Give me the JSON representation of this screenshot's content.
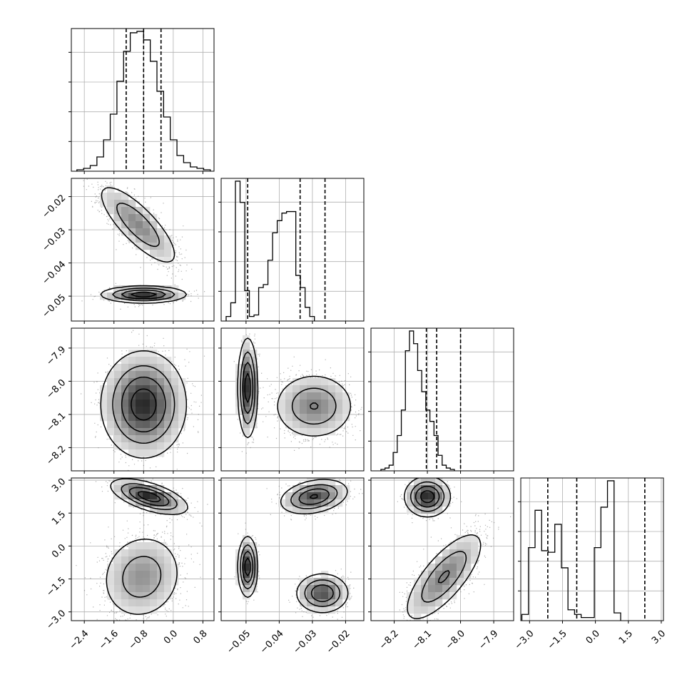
{
  "chart_data": {
    "type": "corner",
    "grid": true,
    "parameters": [
      {
        "ticks": [
          "−2.4",
          "−1.6",
          "−0.8",
          "0.0",
          "0.8"
        ],
        "tick_values": [
          -2.4,
          -1.6,
          -0.8,
          0.0,
          0.8
        ],
        "range": [
          -2.75,
          1.1
        ]
      },
      {
        "ticks": [
          "−0.05",
          "−0.04",
          "−0.03",
          "−0.02"
        ],
        "tick_values": [
          -0.05,
          -0.04,
          -0.03,
          -0.02
        ],
        "range": [
          -0.0575,
          -0.0145
        ]
      },
      {
        "ticks": [
          "−8.2",
          "−8.1",
          "−8.0",
          "−7.9"
        ],
        "tick_values": [
          -8.2,
          -8.1,
          -8.0,
          -7.9
        ],
        "range": [
          -8.27,
          -7.84
        ]
      },
      {
        "ticks": [
          "−3.0",
          "−1.5",
          "0.0",
          "1.5",
          "3.0"
        ],
        "tick_values": [
          -3.0,
          -1.5,
          0.0,
          1.5,
          3.0
        ],
        "range": [
          -3.4,
          3.1
        ]
      }
    ],
    "histograms": [
      {
        "quantiles": [
          -1.27,
          -0.8,
          -0.33
        ],
        "bins": {
          "start": -2.6,
          "width": 0.18,
          "counts": [
            1,
            2,
            4,
            10,
            22,
            40,
            63,
            84,
            97,
            98,
            92,
            77,
            56,
            38,
            22,
            11,
            6,
            3,
            2,
            1
          ]
        }
      },
      {
        "quantiles": [
          -0.0495,
          -0.0337,
          -0.0262
        ],
        "bins": {
          "start": -0.056,
          "width": 0.0014,
          "counts": [
            3,
            12,
            92,
            78,
            20,
            3,
            4,
            22,
            24,
            40,
            58,
            66,
            71,
            72,
            72,
            30,
            22,
            9,
            3
          ]
        }
      },
      {
        "quantiles": [
          -8.103,
          -8.072,
          -8.0
        ],
        "bins": {
          "start": -8.24,
          "width": 0.0123,
          "counts": [
            1,
            2,
            4,
            13,
            25,
            43,
            85,
            99,
            90,
            71,
            56,
            43,
            35,
            25,
            11,
            4,
            2,
            1
          ]
        }
      },
      {
        "quantiles": [
          -2.17,
          -0.85,
          2.25
        ],
        "bins": {
          "start": -3.35,
          "width": 0.3,
          "counts": [
            4,
            47,
            71,
            45,
            44,
            62,
            34,
            7,
            4,
            2,
            2,
            47,
            73,
            90,
            5
          ]
        }
      }
    ],
    "blobs": {
      "1-0": [
        {
          "cx": -0.95,
          "cy": -0.0285,
          "sx": 0.5,
          "sy": 0.0057,
          "rho": -0.8,
          "w": 0.6
        },
        {
          "cx": -0.8,
          "cy": -0.0495,
          "sx": 0.5,
          "sy": 0.0011,
          "rho": 0.0,
          "w": 0.4
        }
      ],
      "2-0": [
        {
          "cx": -0.8,
          "cy": -8.07,
          "sx": 0.5,
          "sy": 0.07,
          "rho": 0.0,
          "w": 1.0
        }
      ],
      "2-1": [
        {
          "cx": -0.0495,
          "cy": -8.02,
          "sx": 0.0013,
          "sy": 0.065,
          "rho": 0.0,
          "w": 0.4
        },
        {
          "cx": -0.0295,
          "cy": -8.075,
          "sx": 0.0055,
          "sy": 0.045,
          "rho": 0.0,
          "w": 0.6
        }
      ],
      "3-0": [
        {
          "cx": -0.65,
          "cy": 2.25,
          "sx": 0.45,
          "sy": 0.35,
          "rho": -0.6,
          "w": 0.4
        },
        {
          "cx": -0.85,
          "cy": -1.4,
          "sx": 0.5,
          "sy": 0.9,
          "rho": 0.1,
          "w": 0.6
        }
      ],
      "3-1": [
        {
          "cx": -0.0495,
          "cy": -0.95,
          "sx": 0.0013,
          "sy": 0.6,
          "rho": 0.0,
          "w": 0.25
        },
        {
          "cx": -0.0295,
          "cy": 2.25,
          "sx": 0.0045,
          "sy": 0.35,
          "rho": 0.3,
          "w": 0.4
        },
        {
          "cx": -0.027,
          "cy": -2.15,
          "sx": 0.0035,
          "sy": 0.4,
          "rho": 0.0,
          "w": 0.35
        }
      ],
      "3-2": [
        {
          "cx": -8.1,
          "cy": 2.25,
          "sx": 0.03,
          "sy": 0.4,
          "rho": 0.0,
          "w": 0.4
        },
        {
          "cx": -8.05,
          "cy": -1.4,
          "sx": 0.055,
          "sy": 0.95,
          "rho": 0.75,
          "w": 0.6
        }
      ]
    }
  }
}
